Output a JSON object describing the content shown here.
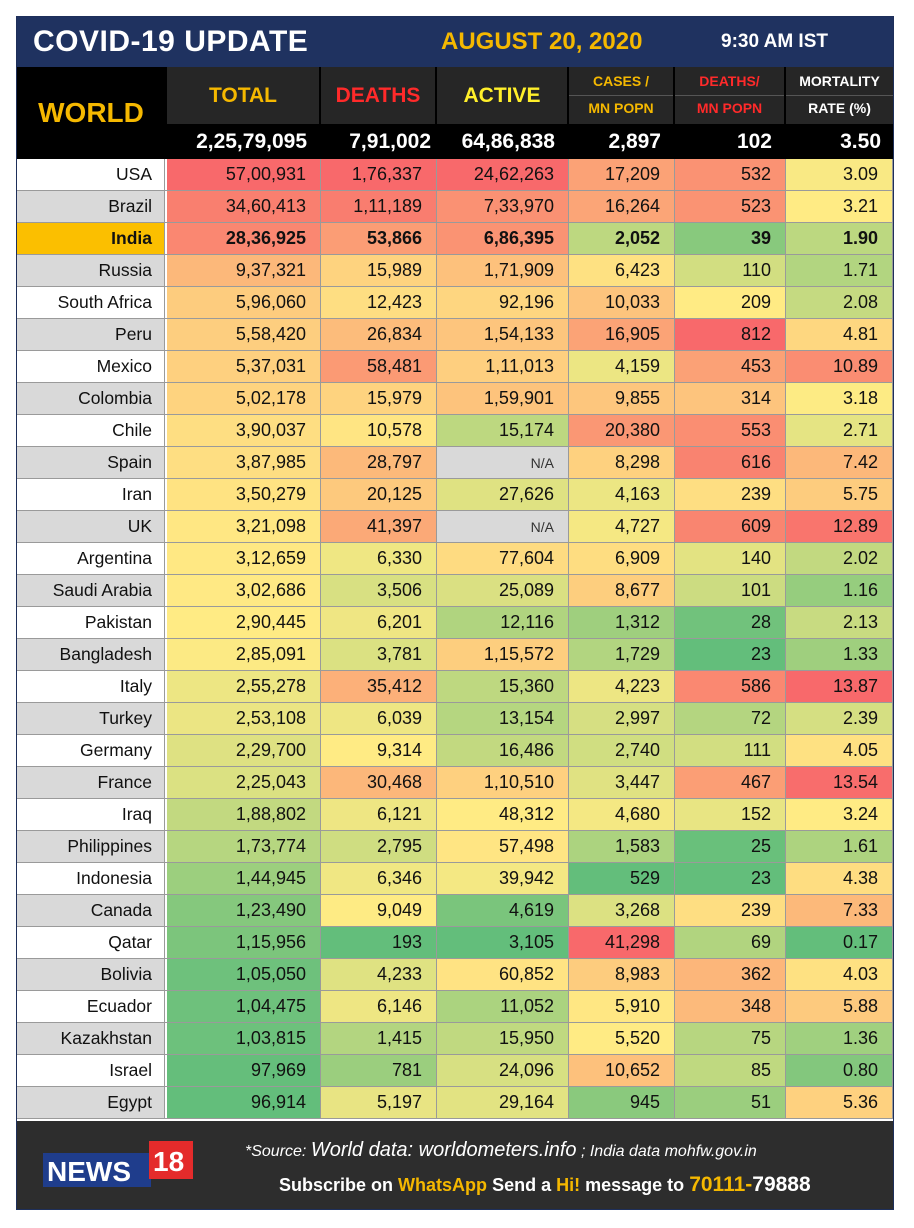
{
  "header": {
    "title": "COVID-19 UPDATE",
    "date": "AUGUST 20, 2020",
    "time": "9:30 AM IST"
  },
  "world_label": "WORLD",
  "columns": {
    "total": "TOTAL",
    "deaths": "DEATHS",
    "active": "ACTIVE",
    "cases_l1": "CASES /",
    "cases_l2": "MN POPN",
    "deaths_mn_l1": "DEATHS/",
    "deaths_mn_l2": "MN POPN",
    "mort_l1": "MORTALITY",
    "mort_l2": "RATE (%)"
  },
  "world_totals": {
    "total": "2,25,79,095",
    "deaths": "7,91,002",
    "active": "64,86,838",
    "cases_mn": "2,897",
    "deaths_mn": "102",
    "mortality": "3.50"
  },
  "rows": [
    {
      "country": "USA",
      "total": "57,00,931",
      "deaths": "1,76,337",
      "active": "24,62,263",
      "cases_mn": "17,209",
      "deaths_mn": "532",
      "mortality": "3.09"
    },
    {
      "country": "Brazil",
      "total": "34,60,413",
      "deaths": "1,11,189",
      "active": "7,33,970",
      "cases_mn": "16,264",
      "deaths_mn": "523",
      "mortality": "3.21"
    },
    {
      "country": "India",
      "total": "28,36,925",
      "deaths": "53,866",
      "active": "6,86,395",
      "cases_mn": "2,052",
      "deaths_mn": "39",
      "mortality": "1.90"
    },
    {
      "country": "Russia",
      "total": "9,37,321",
      "deaths": "15,989",
      "active": "1,71,909",
      "cases_mn": "6,423",
      "deaths_mn": "110",
      "mortality": "1.71"
    },
    {
      "country": "South Africa",
      "total": "5,96,060",
      "deaths": "12,423",
      "active": "92,196",
      "cases_mn": "10,033",
      "deaths_mn": "209",
      "mortality": "2.08"
    },
    {
      "country": "Peru",
      "total": "5,58,420",
      "deaths": "26,834",
      "active": "1,54,133",
      "cases_mn": "16,905",
      "deaths_mn": "812",
      "mortality": "4.81"
    },
    {
      "country": "Mexico",
      "total": "5,37,031",
      "deaths": "58,481",
      "active": "1,11,013",
      "cases_mn": "4,159",
      "deaths_mn": "453",
      "mortality": "10.89"
    },
    {
      "country": "Colombia",
      "total": "5,02,178",
      "deaths": "15,979",
      "active": "1,59,901",
      "cases_mn": "9,855",
      "deaths_mn": "314",
      "mortality": "3.18"
    },
    {
      "country": "Chile",
      "total": "3,90,037",
      "deaths": "10,578",
      "active": "15,174",
      "cases_mn": "20,380",
      "deaths_mn": "553",
      "mortality": "2.71"
    },
    {
      "country": "Spain",
      "total": "3,87,985",
      "deaths": "28,797",
      "active": "N/A",
      "cases_mn": "8,298",
      "deaths_mn": "616",
      "mortality": "7.42"
    },
    {
      "country": "Iran",
      "total": "3,50,279",
      "deaths": "20,125",
      "active": "27,626",
      "cases_mn": "4,163",
      "deaths_mn": "239",
      "mortality": "5.75"
    },
    {
      "country": "UK",
      "total": "3,21,098",
      "deaths": "41,397",
      "active": "N/A",
      "cases_mn": "4,727",
      "deaths_mn": "609",
      "mortality": "12.89"
    },
    {
      "country": "Argentina",
      "total": "3,12,659",
      "deaths": "6,330",
      "active": "77,604",
      "cases_mn": "6,909",
      "deaths_mn": "140",
      "mortality": "2.02"
    },
    {
      "country": "Saudi Arabia",
      "total": "3,02,686",
      "deaths": "3,506",
      "active": "25,089",
      "cases_mn": "8,677",
      "deaths_mn": "101",
      "mortality": "1.16"
    },
    {
      "country": "Pakistan",
      "total": "2,90,445",
      "deaths": "6,201",
      "active": "12,116",
      "cases_mn": "1,312",
      "deaths_mn": "28",
      "mortality": "2.13"
    },
    {
      "country": "Bangladesh",
      "total": "2,85,091",
      "deaths": "3,781",
      "active": "1,15,572",
      "cases_mn": "1,729",
      "deaths_mn": "23",
      "mortality": "1.33"
    },
    {
      "country": "Italy",
      "total": "2,55,278",
      "deaths": "35,412",
      "active": "15,360",
      "cases_mn": "4,223",
      "deaths_mn": "586",
      "mortality": "13.87"
    },
    {
      "country": "Turkey",
      "total": "2,53,108",
      "deaths": "6,039",
      "active": "13,154",
      "cases_mn": "2,997",
      "deaths_mn": "72",
      "mortality": "2.39"
    },
    {
      "country": "Germany",
      "total": "2,29,700",
      "deaths": "9,314",
      "active": "16,486",
      "cases_mn": "2,740",
      "deaths_mn": "111",
      "mortality": "4.05"
    },
    {
      "country": "France",
      "total": "2,25,043",
      "deaths": "30,468",
      "active": "1,10,510",
      "cases_mn": "3,447",
      "deaths_mn": "467",
      "mortality": "13.54"
    },
    {
      "country": "Iraq",
      "total": "1,88,802",
      "deaths": "6,121",
      "active": "48,312",
      "cases_mn": "4,680",
      "deaths_mn": "152",
      "mortality": "3.24"
    },
    {
      "country": "Philippines",
      "total": "1,73,774",
      "deaths": "2,795",
      "active": "57,498",
      "cases_mn": "1,583",
      "deaths_mn": "25",
      "mortality": "1.61"
    },
    {
      "country": "Indonesia",
      "total": "1,44,945",
      "deaths": "6,346",
      "active": "39,942",
      "cases_mn": "529",
      "deaths_mn": "23",
      "mortality": "4.38"
    },
    {
      "country": "Canada",
      "total": "1,23,490",
      "deaths": "9,049",
      "active": "4,619",
      "cases_mn": "3,268",
      "deaths_mn": "239",
      "mortality": "7.33"
    },
    {
      "country": "Qatar",
      "total": "1,15,956",
      "deaths": "193",
      "active": "3,105",
      "cases_mn": "41,298",
      "deaths_mn": "69",
      "mortality": "0.17"
    },
    {
      "country": "Bolivia",
      "total": "1,05,050",
      "deaths": "4,233",
      "active": "60,852",
      "cases_mn": "8,983",
      "deaths_mn": "362",
      "mortality": "4.03"
    },
    {
      "country": "Ecuador",
      "total": "1,04,475",
      "deaths": "6,146",
      "active": "11,052",
      "cases_mn": "5,910",
      "deaths_mn": "348",
      "mortality": "5.88"
    },
    {
      "country": "Kazakhstan",
      "total": "1,03,815",
      "deaths": "1,415",
      "active": "15,950",
      "cases_mn": "5,520",
      "deaths_mn": "75",
      "mortality": "1.36"
    },
    {
      "country": "Israel",
      "total": "97,969",
      "deaths": "781",
      "active": "24,096",
      "cases_mn": "10,652",
      "deaths_mn": "85",
      "mortality": "0.80"
    },
    {
      "country": "Egypt",
      "total": "96,914",
      "deaths": "5,197",
      "active": "29,164",
      "cases_mn": "945",
      "deaths_mn": "51",
      "mortality": "5.36"
    }
  ],
  "colors": {
    "header_bg": "#1f3260",
    "accent_yellow": "#f5b800",
    "deaths_red": "#ff2a2a",
    "active_yellow": "#ffef2a",
    "india_highlight": "#fbbf00",
    "na_gray": "#d9d9d9",
    "scale_red": "#f8696b",
    "scale_yellow": "#ffeb84",
    "scale_green": "#63be7b"
  },
  "footer": {
    "logo_text": "NEWS",
    "logo_num": "18",
    "source_prefix": "*Source:",
    "source_world": "World data: worldometers.info",
    "source_sep": ";",
    "source_india": "India data mohfw.gov.in",
    "subscribe_1": "Subscribe on",
    "subscribe_app": "WhatsApp",
    "subscribe_2": "Send a",
    "subscribe_hi": "Hi!",
    "subscribe_3": "message to",
    "phone_a": "70111-",
    "phone_b": "79888"
  }
}
